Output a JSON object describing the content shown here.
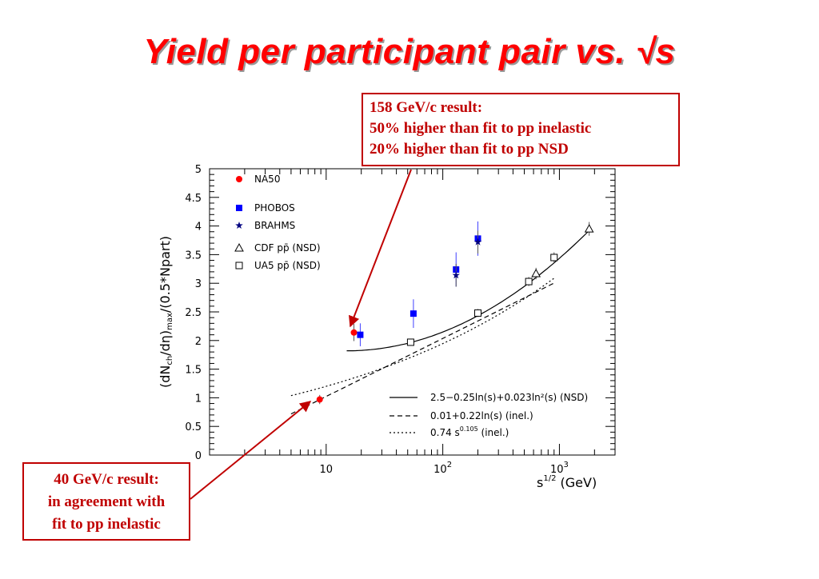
{
  "title": "Yield per participant pair vs. √s",
  "callouts": {
    "top": [
      "158 GeV/c result:",
      "50% higher than fit to pp inelastic",
      "20% higher than fit to pp NSD"
    ],
    "bottom": [
      "40 GeV/c result:",
      "in agreement with",
      "fit to pp inelastic"
    ]
  },
  "colors": {
    "title": "#ff0000",
    "callout": "#c00000",
    "na50": "#ff0000",
    "phobos": "#0000ff"
  },
  "chart_data": {
    "type": "scatter",
    "xscale": "log",
    "xlim": [
      1,
      3000
    ],
    "ylim": [
      0,
      5
    ],
    "xlabel": "s^1/2 (GeV)",
    "ylabel": "(dNch/dη)max/(0.5*Npart)",
    "yticks": [
      "0",
      "0.5",
      "1",
      "1.5",
      "2",
      "2.5",
      "3",
      "3.5",
      "4",
      "4.5",
      "5"
    ],
    "xticks": [
      {
        "value": 10,
        "base": "10",
        "exp": ""
      },
      {
        "value": 100,
        "base": "10",
        "exp": "2"
      },
      {
        "value": 1000,
        "base": "10",
        "exp": "3"
      }
    ],
    "series": [
      {
        "name": "NA50",
        "marker": "circle",
        "color": "#ff0000",
        "points": [
          {
            "x": 8.8,
            "y": 0.97,
            "err": 0.08
          },
          {
            "x": 17.3,
            "y": 2.14,
            "err": 0.15
          }
        ]
      },
      {
        "name": "PHOBOS",
        "marker": "square",
        "color": "#0000ff",
        "points": [
          {
            "x": 19.6,
            "y": 2.1,
            "err": 0.2
          },
          {
            "x": 56,
            "y": 2.47,
            "err": 0.25
          },
          {
            "x": 130,
            "y": 3.24,
            "err": 0.3
          },
          {
            "x": 200,
            "y": 3.78,
            "err": 0.3
          }
        ]
      },
      {
        "name": "BRAHMS",
        "marker": "star",
        "color": "#000080",
        "points": [
          {
            "x": 130,
            "y": 3.14,
            "err": 0.2
          },
          {
            "x": 200,
            "y": 3.72,
            "err": 0.2
          }
        ]
      },
      {
        "name": "CDF pp̄ (NSD)",
        "marker": "triangle",
        "color": "#000000",
        "points": [
          {
            "x": 630,
            "y": 3.17,
            "err": 0.1
          },
          {
            "x": 1800,
            "y": 3.95,
            "err": 0.12
          }
        ]
      },
      {
        "name": "UA5 pp̄ (NSD)",
        "marker": "open-square",
        "color": "#000000",
        "points": [
          {
            "x": 53,
            "y": 1.97,
            "err": 0.06
          },
          {
            "x": 200,
            "y": 2.48,
            "err": 0.07
          },
          {
            "x": 546,
            "y": 3.03,
            "err": 0.08
          },
          {
            "x": 900,
            "y": 3.45,
            "err": 0.09
          }
        ]
      }
    ],
    "fits": [
      {
        "label": "2.5−0.25ln(s)+0.023ln²(s)  (NSD)",
        "style": "solid",
        "xrange": [
          15,
          1800
        ]
      },
      {
        "label": "0.01+0.22ln(s)  (inel.)",
        "style": "dashed",
        "xrange": [
          5,
          900
        ]
      },
      {
        "label": "0.74 s^0.105  (inel.)",
        "style": "dotted",
        "xrange": [
          5,
          900
        ]
      }
    ]
  }
}
